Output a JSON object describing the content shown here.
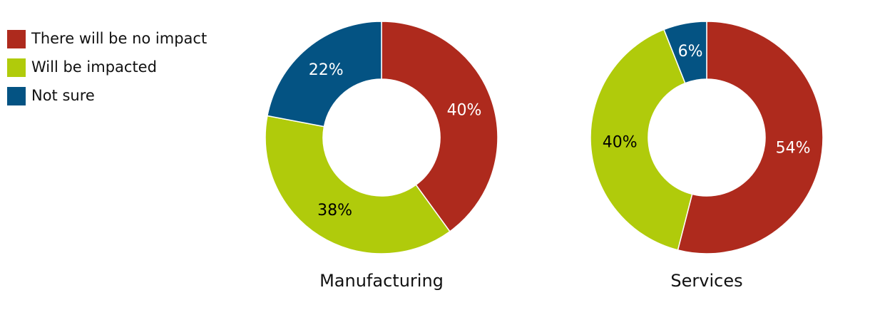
{
  "legend": {
    "labels": [
      "There will be no impact",
      "Will be impacted",
      "Not sure"
    ],
    "colors": [
      "#ae2a1d",
      "#b0cb0b",
      "#045383"
    ],
    "text_colors": [
      "#ffffff",
      "#000000",
      "#ffffff"
    ]
  },
  "chart_data": [
    {
      "type": "donut",
      "title": "Manufacturing",
      "values": [
        40,
        38,
        22
      ],
      "value_labels": [
        "40%",
        "38%",
        "22%"
      ]
    },
    {
      "type": "donut",
      "title": "Services",
      "values": [
        54,
        40,
        6
      ],
      "value_labels": [
        "54%",
        "40%",
        "6%"
      ]
    }
  ]
}
